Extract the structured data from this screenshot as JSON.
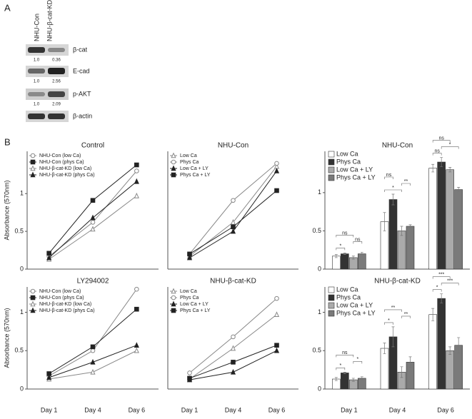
{
  "panel_labels": [
    "A",
    "B"
  ],
  "blot": {
    "lanes": [
      "NHU-Con",
      "NHU-β-cat-KD"
    ],
    "rows": [
      {
        "label": "β-cat",
        "ratios": [
          "1.0",
          "0.36"
        ]
      },
      {
        "label": "E-cad",
        "ratios": [
          "1.0",
          "2.56"
        ]
      },
      {
        "label": "p-AKT",
        "ratios": [
          "1.0",
          "2.09"
        ]
      },
      {
        "label": "β-actin"
      }
    ]
  },
  "chart_data": [
    {
      "type": "line",
      "title": "Control",
      "ylabel": "Absorbance (570nm)",
      "ylim": [
        0,
        1.56
      ],
      "yticks": [
        0,
        0.5,
        1
      ],
      "series": [
        {
          "name": "NHU-Con (low Ca)",
          "color": "#888888",
          "marker": "circle-open",
          "values": [
            0.17,
            0.62,
            1.3
          ]
        },
        {
          "name": "NHU-Con (phys Ca)",
          "color": "#222222",
          "marker": "square",
          "values": [
            0.21,
            0.91,
            1.38
          ]
        },
        {
          "name": "NHU-β-cat-KD (low Ca)",
          "color": "#888888",
          "marker": "triangle-open",
          "values": [
            0.13,
            0.53,
            0.97
          ]
        },
        {
          "name": "NHU-β-cat-KD (phys Ca)",
          "color": "#222222",
          "marker": "triangle",
          "values": [
            0.15,
            0.68,
            1.16
          ]
        }
      ]
    },
    {
      "type": "line",
      "title": "NHU-Con",
      "ylim": [
        0,
        1.56
      ],
      "series": [
        {
          "name": "Low Ca",
          "color": "#888888",
          "marker": "triangle-open",
          "values": [
            0.17,
            0.62,
            1.36
          ]
        },
        {
          "name": "Phys Ca",
          "color": "#888888",
          "marker": "circle-open",
          "values": [
            0.2,
            0.91,
            1.4
          ]
        },
        {
          "name": "Low Ca + LY",
          "color": "#222222",
          "marker": "triangle",
          "values": [
            0.15,
            0.5,
            1.3
          ]
        },
        {
          "name": "Phys Ca + LY",
          "color": "#222222",
          "marker": "square",
          "values": [
            0.2,
            0.56,
            1.04
          ]
        }
      ]
    },
    {
      "type": "bar",
      "title": "NHU-Con",
      "ylim": [
        0,
        1.54
      ],
      "yticks": [
        0,
        0.5,
        1
      ],
      "series": [
        {
          "name": "Low Ca",
          "color": "#ffffff",
          "values": [
            0.17,
            0.62,
            1.32
          ],
          "errors": [
            0.02,
            0.12,
            0.05
          ]
        },
        {
          "name": "Phys Ca",
          "color": "#333333",
          "values": [
            0.2,
            0.91,
            1.4
          ],
          "errors": [
            0.01,
            0.07,
            0.06
          ]
        },
        {
          "name": "Low Ca + LY",
          "color": "#aaaaaa",
          "values": [
            0.15,
            0.5,
            1.3
          ],
          "errors": [
            0.02,
            0.06,
            0.03
          ]
        },
        {
          "name": "Phys Ca + LY",
          "color": "#7a7a7a",
          "values": [
            0.2,
            0.56,
            1.04
          ],
          "errors": [
            0.02,
            0.02,
            0.03
          ]
        }
      ],
      "annotations": [
        {
          "text": "*",
          "category": 0,
          "pair": [
            0,
            1
          ]
        },
        {
          "text": "ns",
          "category": 0,
          "pair": [
            2,
            3
          ]
        },
        {
          "text": "ns",
          "category": 0,
          "pair": [
            0,
            2
          ]
        },
        {
          "text": "*",
          "category": 1,
          "pair": [
            0,
            2
          ]
        },
        {
          "text": "**",
          "category": 1,
          "pair": [
            2,
            3
          ]
        },
        {
          "text": "ns",
          "category": 1,
          "pair": [
            0,
            1
          ]
        },
        {
          "text": "ns",
          "category": 2,
          "pair": [
            0,
            1
          ]
        },
        {
          "text": "*",
          "category": 2,
          "pair": [
            1,
            3
          ]
        },
        {
          "text": "ns",
          "category": 2,
          "pair": [
            0,
            2
          ]
        }
      ]
    },
    {
      "type": "line",
      "title": "LY294002",
      "ylabel": "Absorbance (570nm)",
      "ylim": [
        0,
        1.33
      ],
      "yticks": [
        0,
        0.5,
        1
      ],
      "categories": [
        "Day 1",
        "Day 4",
        "Day 6"
      ],
      "series": [
        {
          "name": "NHU-Con (low Ca)",
          "color": "#888888",
          "marker": "circle-open",
          "values": [
            0.17,
            0.5,
            1.3
          ]
        },
        {
          "name": "NHU-Con (phys Ca)",
          "color": "#222222",
          "marker": "square",
          "values": [
            0.2,
            0.55,
            1.04
          ]
        },
        {
          "name": "NHU-β-cat-KD (low Ca)",
          "color": "#888888",
          "marker": "triangle-open",
          "values": [
            0.13,
            0.22,
            0.5
          ]
        },
        {
          "name": "NHU-β-cat-KD (phys Ca)",
          "color": "#222222",
          "marker": "triangle",
          "values": [
            0.15,
            0.35,
            0.57
          ]
        }
      ]
    },
    {
      "type": "line",
      "title": "NHU-β-cat-KD",
      "ylim": [
        0,
        1.33
      ],
      "categories": [
        "Day 1",
        "Day 4",
        "Day 6"
      ],
      "series": [
        {
          "name": "Low Ca",
          "color": "#888888",
          "marker": "triangle-open",
          "values": [
            0.13,
            0.53,
            0.97
          ]
        },
        {
          "name": "Phys Ca",
          "color": "#888888",
          "marker": "circle-open",
          "values": [
            0.21,
            0.68,
            1.18
          ]
        },
        {
          "name": "Low Ca + LY",
          "color": "#222222",
          "marker": "triangle",
          "values": [
            0.12,
            0.22,
            0.5
          ]
        },
        {
          "name": "Phys Ca + LY",
          "color": "#222222",
          "marker": "square",
          "values": [
            0.14,
            0.35,
            0.57
          ]
        }
      ]
    },
    {
      "type": "bar",
      "title": "NHU-β-cat-KD",
      "ylim": [
        0,
        1.33
      ],
      "yticks": [
        0,
        0.5,
        1
      ],
      "categories": [
        "Day 1",
        "Day 4",
        "Day 6"
      ],
      "series": [
        {
          "name": "Low Ca",
          "color": "#ffffff",
          "values": [
            0.13,
            0.53,
            0.97
          ],
          "errors": [
            0.02,
            0.07,
            0.08
          ]
        },
        {
          "name": "Phys Ca",
          "color": "#333333",
          "values": [
            0.21,
            0.68,
            1.18
          ],
          "errors": [
            0.01,
            0.13,
            0.06
          ]
        },
        {
          "name": "Low Ca + LY",
          "color": "#aaaaaa",
          "values": [
            0.12,
            0.22,
            0.5
          ],
          "errors": [
            0.02,
            0.07,
            0.05
          ]
        },
        {
          "name": "Phys Ca + LY",
          "color": "#7a7a7a",
          "values": [
            0.14,
            0.35,
            0.57
          ],
          "errors": [
            0.02,
            0.07,
            0.1
          ]
        }
      ],
      "annotations": [
        {
          "text": "*",
          "category": 0,
          "pair": [
            0,
            1
          ]
        },
        {
          "text": "*",
          "category": 0,
          "pair": [
            2,
            3
          ]
        },
        {
          "text": "ns",
          "category": 0,
          "pair": [
            0,
            2
          ]
        },
        {
          "text": "*",
          "category": 1,
          "pair": [
            0,
            1
          ]
        },
        {
          "text": "**",
          "category": 1,
          "pair": [
            2,
            3
          ]
        },
        {
          "text": "**",
          "category": 1,
          "pair": [
            0,
            2
          ]
        },
        {
          "text": "*",
          "category": 2,
          "pair": [
            0,
            1
          ]
        },
        {
          "text": "***",
          "category": 2,
          "pair": [
            1,
            3
          ]
        },
        {
          "text": "***",
          "category": 2,
          "pair": [
            0,
            2
          ]
        }
      ]
    }
  ]
}
